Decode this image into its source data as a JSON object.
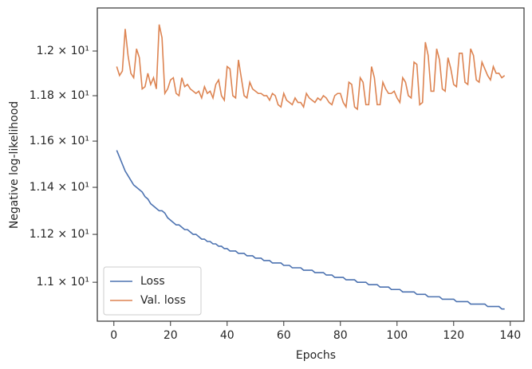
{
  "chart_data": {
    "type": "line",
    "x_label": "Epochs",
    "y_label": "Negative log-likelihood",
    "log_y": true,
    "legend": "lower left",
    "xlim": [
      -5.85,
      144.85
    ],
    "xticks": [
      0,
      20,
      40,
      60,
      80,
      100,
      120,
      140
    ],
    "ylim": [
      10.84,
      12.196
    ],
    "yticks": [
      {
        "value": 11,
        "label": "1.1 × 10¹"
      },
      {
        "value": 11.2,
        "label": "1.12 × 10¹"
      },
      {
        "value": 11.4,
        "label": "1.14 × 10¹"
      },
      {
        "value": 11.6,
        "label": "1.16 × 10¹"
      },
      {
        "value": 11.8,
        "label": "1.18 × 10¹"
      },
      {
        "value": 12,
        "label": "1.2 × 10¹"
      }
    ],
    "x": [
      1,
      2,
      3,
      4,
      5,
      6,
      7,
      8,
      9,
      10,
      11,
      12,
      13,
      14,
      15,
      16,
      17,
      18,
      19,
      20,
      21,
      22,
      23,
      24,
      25,
      26,
      27,
      28,
      29,
      30,
      31,
      32,
      33,
      34,
      35,
      36,
      37,
      38,
      39,
      40,
      41,
      42,
      43,
      44,
      45,
      46,
      47,
      48,
      49,
      50,
      51,
      52,
      53,
      54,
      55,
      56,
      57,
      58,
      59,
      60,
      61,
      62,
      63,
      64,
      65,
      66,
      67,
      68,
      69,
      70,
      71,
      72,
      73,
      74,
      75,
      76,
      77,
      78,
      79,
      80,
      81,
      82,
      83,
      84,
      85,
      86,
      87,
      88,
      89,
      90,
      91,
      92,
      93,
      94,
      95,
      96,
      97,
      98,
      99,
      100,
      101,
      102,
      103,
      104,
      105,
      106,
      107,
      108,
      109,
      110,
      111,
      112,
      113,
      114,
      115,
      116,
      117,
      118,
      119,
      120,
      121,
      122,
      123,
      124,
      125,
      126,
      127,
      128,
      129,
      130,
      131,
      132,
      133,
      134,
      135,
      136,
      137,
      138
    ],
    "series": [
      {
        "name": "Loss",
        "color": "#4c72b0",
        "values": [
          11.56,
          11.53,
          11.5,
          11.47,
          11.45,
          11.43,
          11.41,
          11.4,
          11.39,
          11.38,
          11.36,
          11.35,
          11.33,
          11.32,
          11.31,
          11.3,
          11.3,
          11.29,
          11.27,
          11.26,
          11.25,
          11.24,
          11.24,
          11.23,
          11.22,
          11.22,
          11.21,
          11.2,
          11.2,
          11.19,
          11.18,
          11.18,
          11.17,
          11.17,
          11.16,
          11.16,
          11.15,
          11.15,
          11.14,
          11.14,
          11.13,
          11.13,
          11.13,
          11.12,
          11.12,
          11.12,
          11.11,
          11.11,
          11.11,
          11.1,
          11.1,
          11.1,
          11.09,
          11.09,
          11.09,
          11.08,
          11.08,
          11.08,
          11.08,
          11.07,
          11.07,
          11.07,
          11.06,
          11.06,
          11.06,
          11.06,
          11.05,
          11.05,
          11.05,
          11.05,
          11.04,
          11.04,
          11.04,
          11.04,
          11.03,
          11.03,
          11.03,
          11.02,
          11.02,
          11.02,
          11.02,
          11.01,
          11.01,
          11.01,
          11.01,
          11.0,
          11.0,
          11.0,
          11.0,
          10.99,
          10.99,
          10.99,
          10.99,
          10.98,
          10.98,
          10.98,
          10.98,
          10.97,
          10.97,
          10.97,
          10.97,
          10.96,
          10.96,
          10.96,
          10.96,
          10.96,
          10.95,
          10.95,
          10.95,
          10.95,
          10.94,
          10.94,
          10.94,
          10.94,
          10.94,
          10.93,
          10.93,
          10.93,
          10.93,
          10.93,
          10.92,
          10.92,
          10.92,
          10.92,
          10.92,
          10.91,
          10.91,
          10.91,
          10.91,
          10.91,
          10.91,
          10.9,
          10.9,
          10.9,
          10.9,
          10.9,
          10.89,
          10.89
        ]
      },
      {
        "name": "Val. loss",
        "color": "#dd8452",
        "values": [
          11.93,
          11.89,
          11.91,
          12.1,
          11.98,
          11.9,
          11.88,
          12.01,
          11.97,
          11.83,
          11.84,
          11.9,
          11.85,
          11.88,
          11.83,
          12.12,
          12.06,
          11.81,
          11.83,
          11.87,
          11.88,
          11.81,
          11.8,
          11.88,
          11.84,
          11.85,
          11.83,
          11.82,
          11.81,
          11.82,
          11.79,
          11.84,
          11.81,
          11.82,
          11.79,
          11.85,
          11.87,
          11.8,
          11.78,
          11.93,
          11.92,
          11.8,
          11.79,
          11.96,
          11.88,
          11.8,
          11.79,
          11.86,
          11.83,
          11.82,
          11.81,
          11.81,
          11.8,
          11.8,
          11.78,
          11.81,
          11.8,
          11.76,
          11.75,
          11.81,
          11.78,
          11.77,
          11.76,
          11.79,
          11.77,
          11.77,
          11.75,
          11.81,
          11.79,
          11.78,
          11.77,
          11.79,
          11.78,
          11.8,
          11.79,
          11.77,
          11.76,
          11.8,
          11.81,
          11.81,
          11.77,
          11.75,
          11.86,
          11.85,
          11.75,
          11.74,
          11.88,
          11.86,
          11.76,
          11.76,
          11.93,
          11.88,
          11.76,
          11.76,
          11.86,
          11.83,
          11.81,
          11.81,
          11.82,
          11.79,
          11.77,
          11.88,
          11.86,
          11.8,
          11.79,
          11.95,
          11.94,
          11.76,
          11.77,
          12.04,
          11.98,
          11.82,
          11.82,
          12.01,
          11.96,
          11.83,
          11.82,
          11.97,
          11.92,
          11.85,
          11.84,
          11.99,
          11.99,
          11.86,
          11.85,
          12.01,
          11.98,
          11.87,
          11.86,
          11.95,
          11.92,
          11.89,
          11.87,
          11.93,
          11.9,
          11.9,
          11.88,
          11.89
        ]
      }
    ]
  }
}
